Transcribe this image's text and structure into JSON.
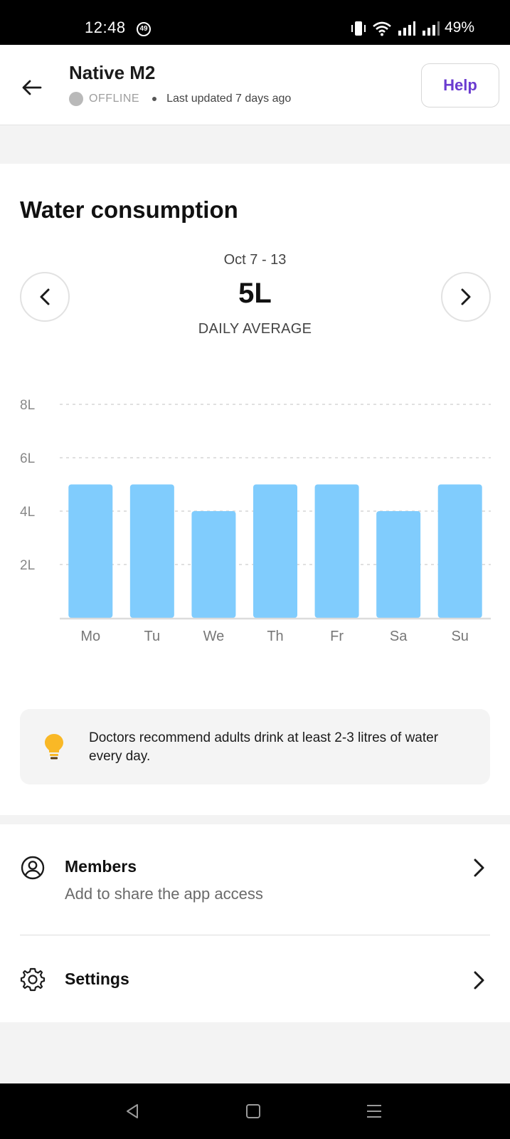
{
  "status_bar": {
    "time": "12:48",
    "notification_badge": "49",
    "battery": "49%"
  },
  "header": {
    "device_name": "Native M2",
    "status": "OFFLINE",
    "last_updated": "Last updated 7 days ago",
    "help_label": "Help",
    "help_color": "#6a3bd0"
  },
  "water": {
    "title": "Water consumption",
    "date_range": "Oct 7 - 13",
    "average_value": "5L",
    "average_label": "DAILY AVERAGE"
  },
  "chart_data": {
    "type": "bar",
    "categories": [
      "Mo",
      "Tu",
      "We",
      "Th",
      "Fr",
      "Sa",
      "Su"
    ],
    "values": [
      5,
      5,
      4,
      5,
      5,
      4,
      5
    ],
    "yticks": [
      2,
      4,
      6,
      8
    ],
    "ytick_labels": [
      "2L",
      "4L",
      "6L",
      "8L"
    ],
    "ylim": [
      0,
      8
    ],
    "bar_color": "#80ccfd",
    "grid": true
  },
  "tip": {
    "text": "Doctors recommend adults drink at least 2-3 litres of water every day.",
    "icon": "lightbulb-icon",
    "icon_color": "#f9b826"
  },
  "menu": {
    "members_title": "Members",
    "members_subtitle": "Add to share the app access",
    "settings_title": "Settings"
  }
}
